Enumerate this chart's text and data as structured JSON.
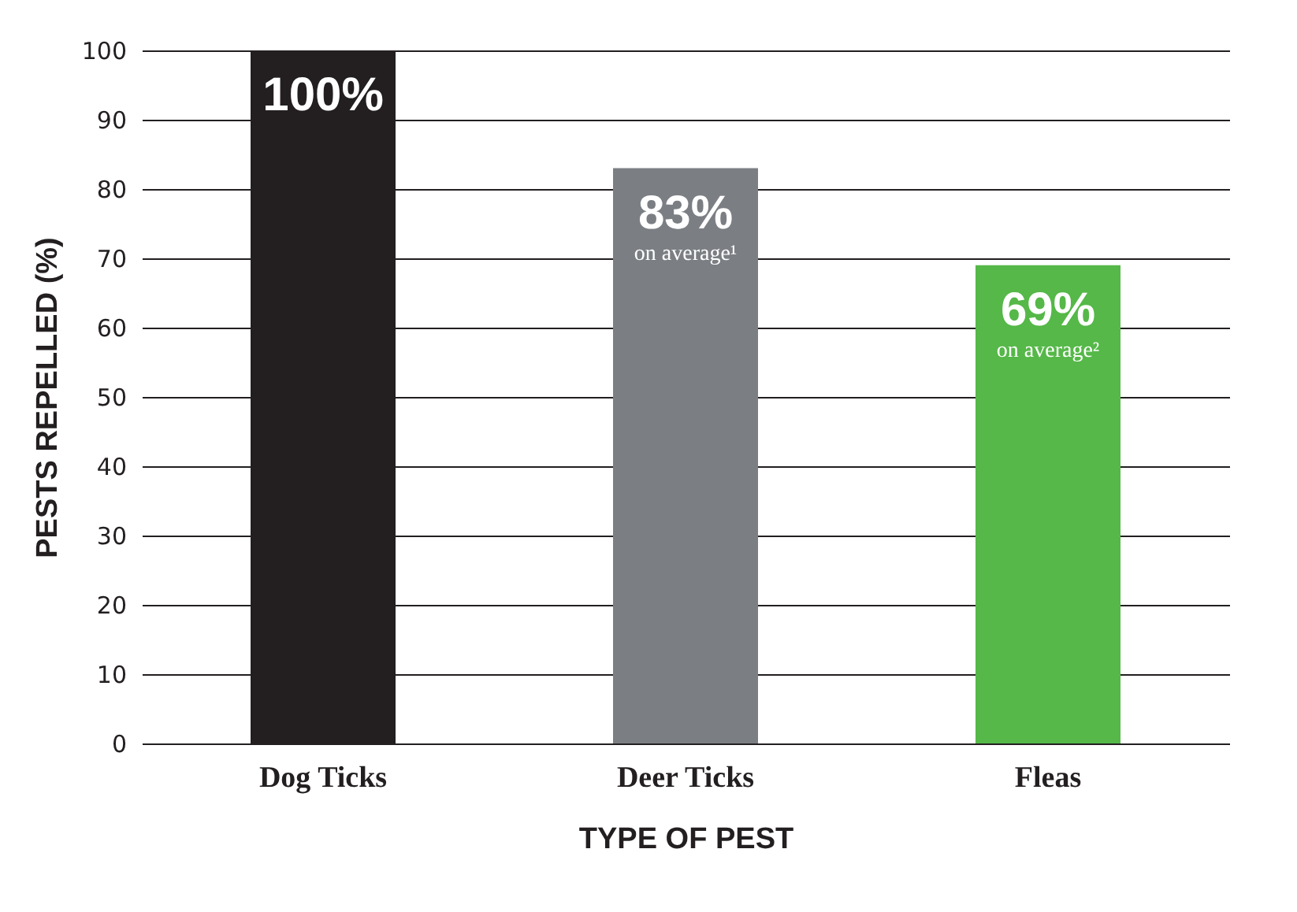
{
  "chart_data": {
    "type": "bar",
    "xlabel": "TYPE OF PEST",
    "ylabel": "PESTS REPELLED (%)",
    "categories": [
      "Dog Ticks",
      "Deer Ticks",
      "Fleas"
    ],
    "values": [
      100,
      83,
      69
    ],
    "colors": [
      "#231f20",
      "#7b7f84",
      "#55b848"
    ],
    "value_labels": [
      "100%",
      "83%",
      "69%"
    ],
    "annotations": [
      "on average¹",
      "on average²"
    ],
    "ylim": [
      0,
      100
    ],
    "yticks": [
      0,
      10,
      20,
      30,
      40,
      50,
      60,
      70,
      80,
      90,
      100
    ],
    "grid": "y"
  }
}
